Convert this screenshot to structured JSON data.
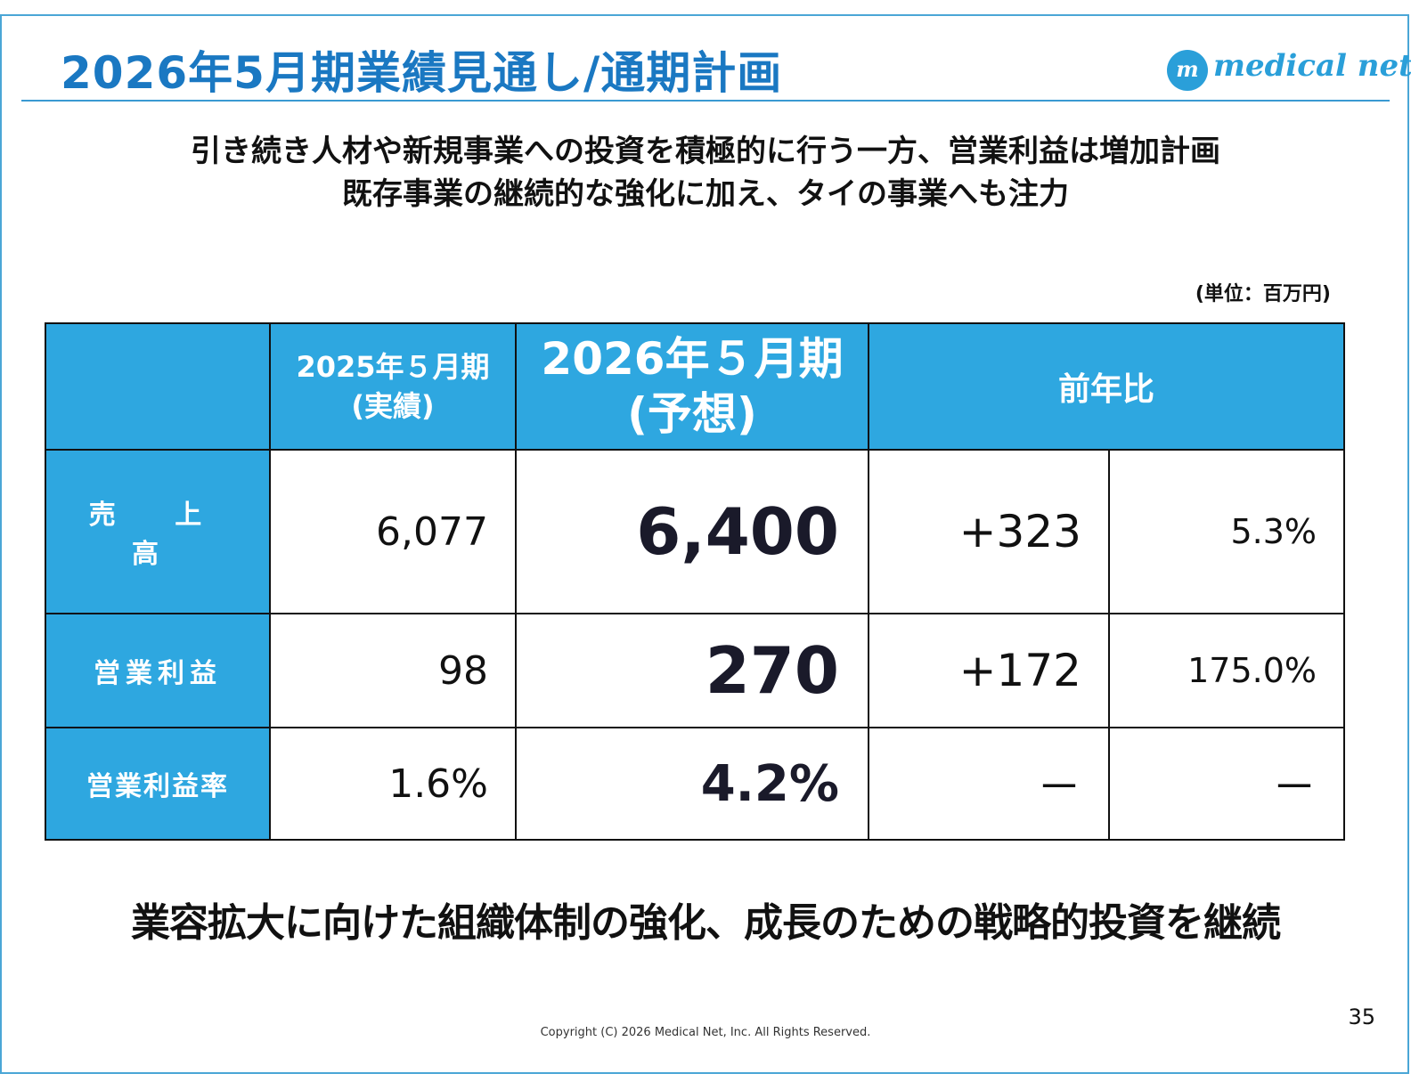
{
  "header": {
    "title": "2026年5月期業績見通し/通期計画",
    "logo_mark": "m",
    "logo_text": "medical net"
  },
  "subtitle": {
    "line1": "引き続き人材や新規事業への投資を積極的に行う一方、営業利益は増加計画",
    "line2": "既存事業の継続的な強化に加え、タイの事業へも注力"
  },
  "unit": "(単位：百万円)",
  "table": {
    "headers": {
      "prev_line1": "2025年５月期",
      "prev_line2": "(実績)",
      "cur_line1": "2026年５月期",
      "cur_line2": "(予想)",
      "yoy": "前年比"
    },
    "rows": [
      {
        "label": "売 上 高",
        "prev": "6,077",
        "cur": "6,400",
        "diff": "+323",
        "pct": "5.3%"
      },
      {
        "label": "営業利益",
        "prev": "98",
        "cur": "270",
        "diff": "+172",
        "pct": "175.0%"
      },
      {
        "label": "営業利益率",
        "prev": "1.6%",
        "cur": "4.2%",
        "diff": "－",
        "pct": "－"
      }
    ]
  },
  "conclusion": "業容拡大に向けた組織体制の強化、成長のための戦略的投資を継続",
  "footer": {
    "page": "35",
    "copyright": "Copyright (C) 2026 Medical Net, Inc. All Rights Reserved."
  }
}
